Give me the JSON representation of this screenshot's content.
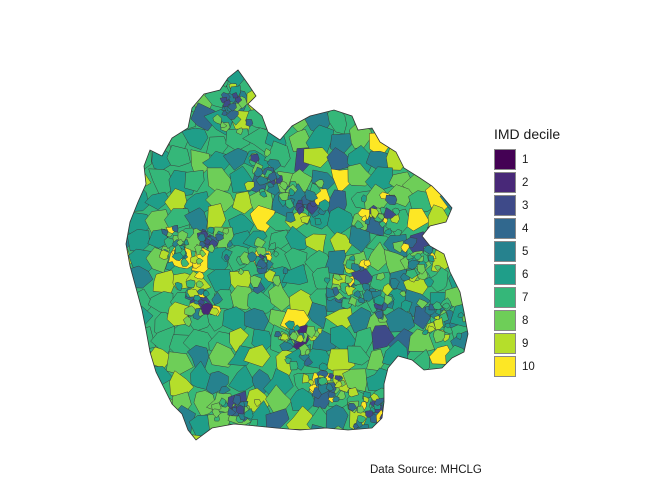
{
  "legend": {
    "title": "IMD decile",
    "items": [
      {
        "label": "1",
        "color": "#440154"
      },
      {
        "label": "2",
        "color": "#482878"
      },
      {
        "label": "3",
        "color": "#3e4a89"
      },
      {
        "label": "4",
        "color": "#31688e"
      },
      {
        "label": "5",
        "color": "#26828e"
      },
      {
        "label": "6",
        "color": "#1f9e89"
      },
      {
        "label": "7",
        "color": "#35b779"
      },
      {
        "label": "8",
        "color": "#6ece58"
      },
      {
        "label": "9",
        "color": "#b5de2b"
      },
      {
        "label": "10",
        "color": "#fde725"
      }
    ]
  },
  "caption": "Data Source: MHCLG"
}
